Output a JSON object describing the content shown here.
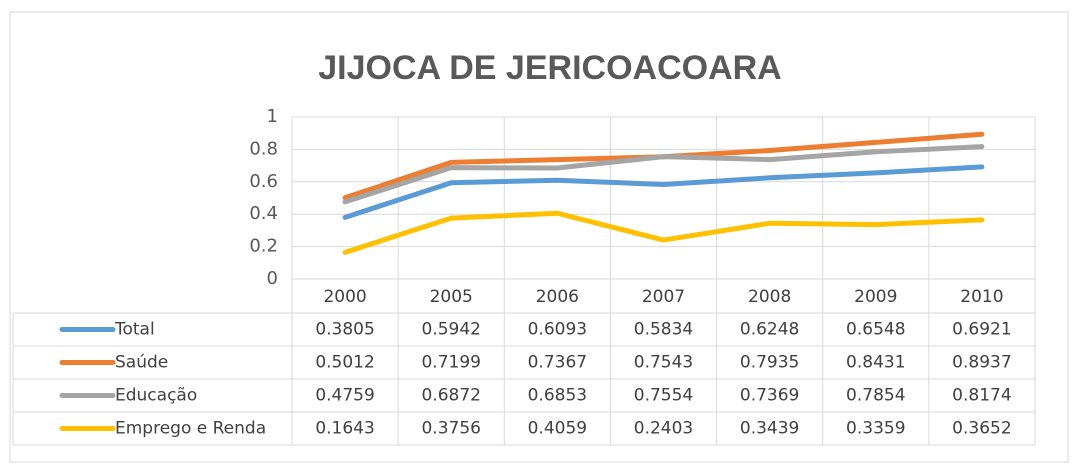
{
  "chart_data": {
    "type": "line",
    "title": "JIJOCA DE JERICOACOARA",
    "categories": [
      "2000",
      "2005",
      "2006",
      "2007",
      "2008",
      "2009",
      "2010"
    ],
    "series": [
      {
        "name": "Total",
        "color": "#5b9bd5",
        "values": [
          0.3805,
          0.5942,
          0.6093,
          0.5834,
          0.6248,
          0.6548,
          0.6921
        ]
      },
      {
        "name": "Saúde",
        "color": "#ed7d31",
        "values": [
          0.5012,
          0.7199,
          0.7367,
          0.7543,
          0.7935,
          0.8431,
          0.8937
        ]
      },
      {
        "name": "Educação",
        "color": "#a5a5a5",
        "values": [
          0.4759,
          0.6872,
          0.6853,
          0.7554,
          0.7369,
          0.7854,
          0.8174
        ]
      },
      {
        "name": "Emprego e Renda",
        "color": "#ffc000",
        "values": [
          0.1643,
          0.3756,
          0.4059,
          0.2403,
          0.3439,
          0.3359,
          0.3652
        ]
      }
    ],
    "ylim": [
      0,
      1
    ],
    "yticks": [
      0,
      0.2,
      0.4,
      0.6,
      0.8,
      1
    ],
    "grid": true,
    "data_table": true
  }
}
